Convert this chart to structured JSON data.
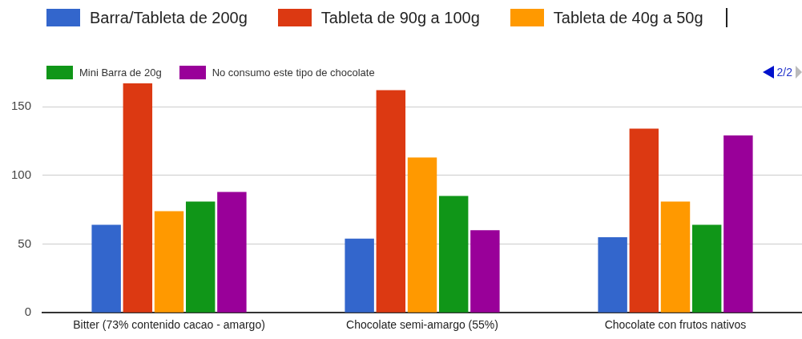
{
  "chart_data": {
    "type": "bar",
    "categories": [
      "Bitter (73% contenido cacao - amargo)",
      "Chocolate semi-amargo (55%)",
      "Chocolate con frutos nativos"
    ],
    "series": [
      {
        "name": "Barra/Tableta de 200g",
        "color": "#3366cc",
        "values": [
          64,
          54,
          55
        ]
      },
      {
        "name": "Tableta de 90g a 100g",
        "color": "#dc3912",
        "values": [
          167,
          162,
          134
        ]
      },
      {
        "name": "Tableta de 40g a 50g",
        "color": "#ff9900",
        "values": [
          74,
          113,
          81
        ]
      },
      {
        "name": "Mini Barra de 20g",
        "color": "#109618",
        "values": [
          81,
          85,
          64
        ]
      },
      {
        "name": "No consumo este tipo de chocolate",
        "color": "#990099",
        "values": [
          88,
          60,
          129
        ]
      }
    ],
    "ylim": [
      0,
      167
    ],
    "yticks": [
      0,
      50,
      100,
      150
    ],
    "grid": "y",
    "legend": "top",
    "annotations": [
      "2/2"
    ]
  }
}
